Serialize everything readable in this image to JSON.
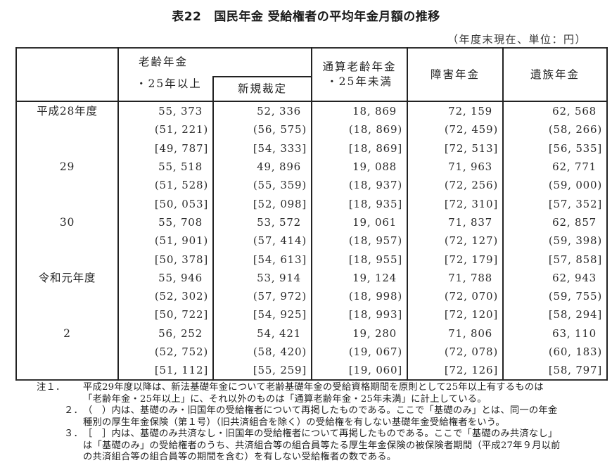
{
  "title": {
    "table_number": "表22",
    "text": "国民年金 受給権者の平均年金月額の推移"
  },
  "unit_note": "（年度末現在、単位：円）",
  "table": {
    "headers": {
      "row_header": "",
      "old_age": {
        "line1": "老齢年金",
        "line2": "・25年以上"
      },
      "new_award": "新規裁定",
      "tsusan": {
        "line1": "通算老齢年金",
        "line2": "・25年未満"
      },
      "disability": "障害年金",
      "survivor": "遺族年金"
    },
    "groups": [
      {
        "year": "平成28年度",
        "rows": [
          [
            "55, 373",
            "52, 336",
            "18, 869",
            "72, 159",
            "62, 568"
          ],
          [
            "(51, 221)",
            "(56, 575)",
            "(18, 869)",
            "(72, 459)",
            "(58, 266)"
          ],
          [
            "[49, 787]",
            "[54, 333]",
            "[18, 869]",
            "[72, 513]",
            "[56, 535]"
          ]
        ]
      },
      {
        "year": "29",
        "rows": [
          [
            "55, 518",
            "49, 896",
            "19, 088",
            "71, 963",
            "62, 771"
          ],
          [
            "(51, 528)",
            "(55, 359)",
            "(18, 937)",
            "(72, 256)",
            "(59, 000)"
          ],
          [
            "[50, 053]",
            "[52, 098]",
            "[18, 935]",
            "[72, 310]",
            "[57, 352]"
          ]
        ]
      },
      {
        "year": "30",
        "rows": [
          [
            "55, 708",
            "53, 572",
            "19, 061",
            "71, 837",
            "62, 857"
          ],
          [
            "(51, 901)",
            "(57, 414)",
            "(18, 957)",
            "(72, 127)",
            "(59, 398)"
          ],
          [
            "[50, 378]",
            "[54, 613]",
            "[18, 955]",
            "[72, 179]",
            "[57, 858]"
          ]
        ]
      },
      {
        "year": "令和元年度",
        "rows": [
          [
            "55, 946",
            "53, 914",
            "19, 124",
            "71, 788",
            "62, 943"
          ],
          [
            "(52, 302)",
            "(57, 972)",
            "(18, 998)",
            "(72, 070)",
            "(59, 755)"
          ],
          [
            "[50, 722]",
            "[54, 925]",
            "[18, 993]",
            "[72, 120]",
            "[58, 294]"
          ]
        ]
      },
      {
        "year": "2",
        "rows": [
          [
            "56, 252",
            "54, 421",
            "19, 280",
            "71, 806",
            "63, 110"
          ],
          [
            "(52, 752)",
            "(58, 420)",
            "(19, 067)",
            "(72, 078)",
            "(60, 183)"
          ],
          [
            "[51, 112]",
            "[55, 259]",
            "[19, 060]",
            "[72, 126]",
            "[58, 797]"
          ]
        ]
      }
    ]
  },
  "notes": [
    {
      "label": "注１．",
      "lines": [
        "平成29年度以降は、新法基礎年金について老齢基礎年金の受給資格期間を原則として25年以上有するものは",
        "「老齢年金・25年以上」に、それ以外のものは「通算老齢年金・25年未満」に計上している。"
      ]
    },
    {
      "label": "２．",
      "lines": [
        "（　）内は、基礎のみ・旧国年の受給権者について再掲したものである。ここで「基礎のみ」とは、同一の年金",
        "種別の厚生年金保険（第１号）（旧共済組合を除く）の受給権を有しない基礎年金受給権者をいう。"
      ]
    },
    {
      "label": "３．",
      "lines": [
        "［　］内は、基礎のみ共済なし・旧国年の受給権者について再掲したものである。ここで「基礎のみ共済なし」",
        "は「基礎のみ」の受給権者のうち、共済組合等の組合員等たる厚生年金保険の被保険者期間（平成27年９月以前",
        "の共済組合等の組合員等の期間を含む）を有しない受給権者の数である。"
      ]
    }
  ]
}
